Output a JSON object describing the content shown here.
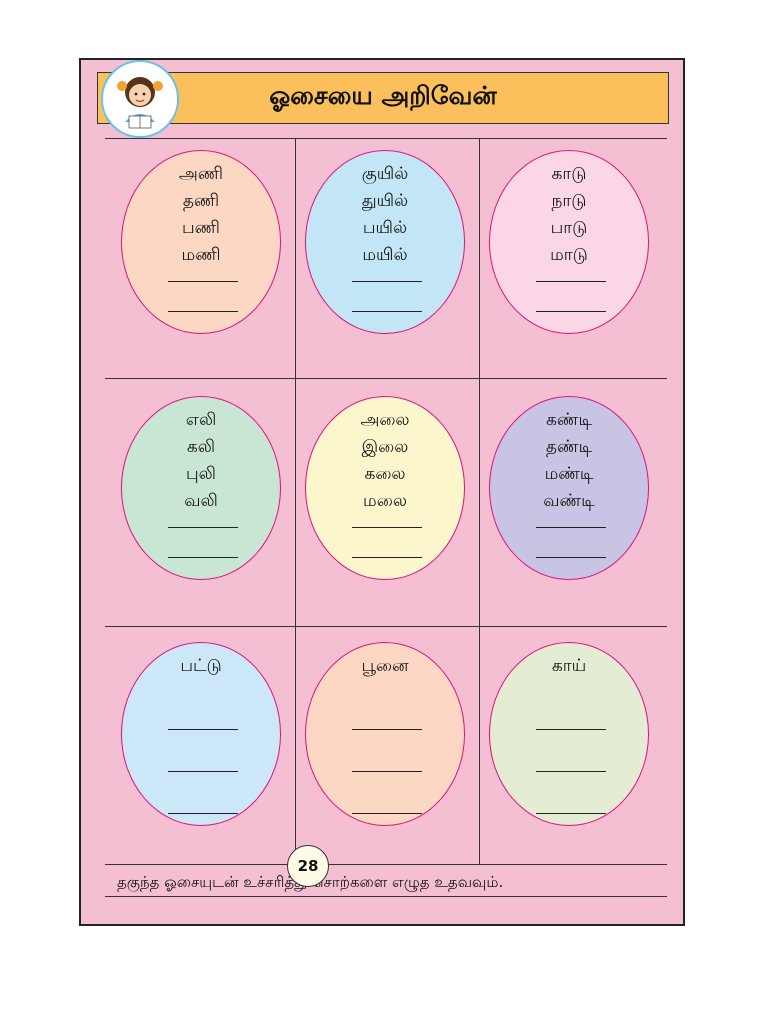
{
  "title": "ஓசையை அறிவேன்",
  "cells": [
    {
      "color": "#fcd8c4",
      "words": [
        "அணி",
        "தணி",
        "பணி",
        "மணி"
      ],
      "blanks": 2
    },
    {
      "color": "#c2e6f6",
      "words": [
        "குயில்",
        "துயில்",
        "பயில்",
        "மயில்"
      ],
      "blanks": 2
    },
    {
      "color": "#fbd6e6",
      "words": [
        "காடு",
        "நாடு",
        "பாடு",
        "மாடு"
      ],
      "blanks": 2
    },
    {
      "color": "#c9e6d4",
      "words": [
        "எலி",
        "கலி",
        "புலி",
        "வலி"
      ],
      "blanks": 2
    },
    {
      "color": "#fbf6cb",
      "words": [
        "அலை",
        "இலை",
        "கலை",
        "மலை"
      ],
      "blanks": 2
    },
    {
      "color": "#c8c4e4",
      "words": [
        "கண்டி",
        "தண்டி",
        "மண்டி",
        "வண்டி"
      ],
      "blanks": 2
    },
    {
      "color": "#cce8f8",
      "words": [
        "பட்டு"
      ],
      "blanks": 3
    },
    {
      "color": "#fcd8c4",
      "words": [
        "பூனை"
      ],
      "blanks": 3
    },
    {
      "color": "#e4ecd3",
      "words": [
        "காய்"
      ],
      "blanks": 3
    }
  ],
  "instruction": "தகுந்த ஓசையுடன் உச்சரித்து சொற்களை எழுத உதவவும்.",
  "page_number": "28"
}
